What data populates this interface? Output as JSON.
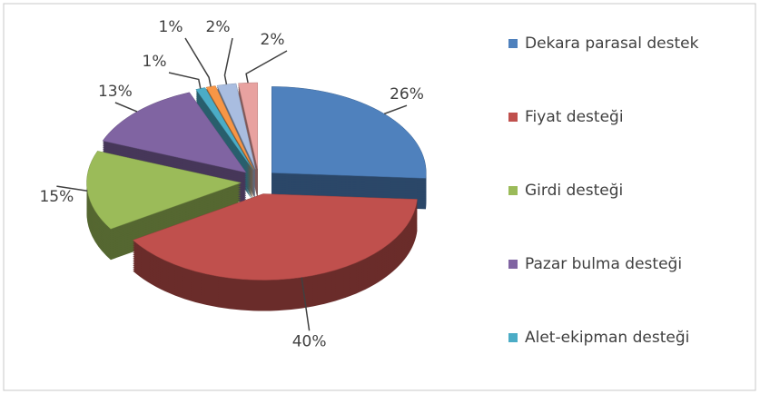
{
  "chart_data": {
    "type": "pie",
    "categories": [
      "Dekara parasal destek",
      "Fiyat desteği",
      "Girdi desteği",
      "Pazar bulma desteği",
      "Alet-ekipman desteği",
      null,
      null,
      null
    ],
    "values": [
      26,
      40,
      15,
      13,
      1,
      1,
      2,
      2
    ],
    "value_labels": [
      "26%",
      "40%",
      "15%",
      "13%",
      "1%",
      "1%",
      "2%",
      "2%"
    ],
    "colors": [
      "#4f81bd",
      "#c0504d",
      "#9bbb59",
      "#8064a2",
      "#4bacc6",
      "#f79646",
      "#a9bde0",
      "#e8a2a0"
    ],
    "legend": "right"
  }
}
